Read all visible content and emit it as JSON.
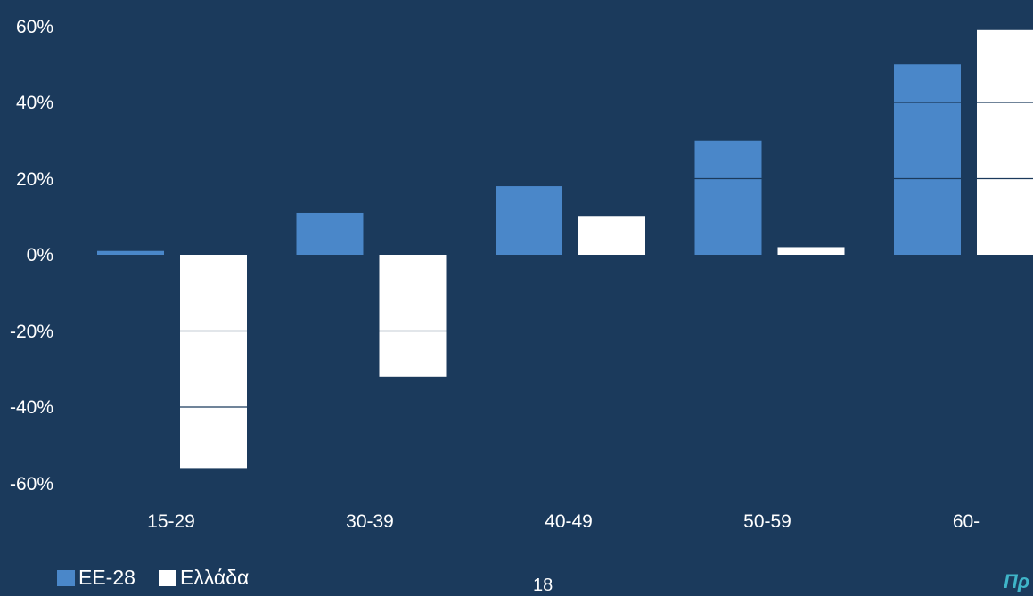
{
  "chart_data": {
    "type": "bar",
    "categories": [
      "15-29",
      "30-39",
      "40-49",
      "50-59",
      "60-"
    ],
    "series": [
      {
        "name": "ΕΕ-28",
        "values": [
          1,
          11,
          18,
          30,
          50
        ],
        "color": "#4a87c9"
      },
      {
        "name": "Ελλάδα",
        "values": [
          -56,
          -32,
          10,
          2,
          59
        ],
        "color": "#ffffff"
      }
    ],
    "y_ticks": [
      "60%",
      "40%",
      "20%",
      "0%",
      "-20%",
      "-40%",
      "-60%"
    ],
    "ylim": [
      -60,
      60
    ],
    "grid": false,
    "legend_position": "bottom-left",
    "background": "#1b3a5c"
  },
  "page_number": "18"
}
